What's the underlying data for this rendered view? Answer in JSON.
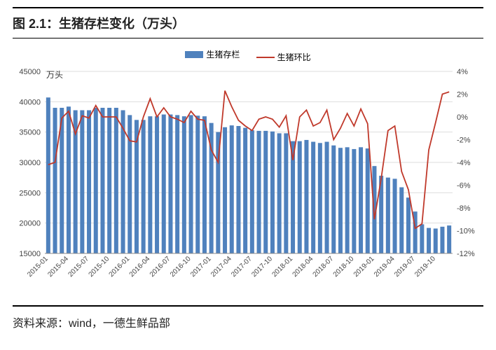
{
  "title": "图 2.1：生猪存栏变化（万头）",
  "source": "资料来源：wind，一德生鲜品部",
  "legend": {
    "bar_label": "生猪存栏",
    "line_label": "生猪环比"
  },
  "y_left_unit": "万头",
  "chart": {
    "type": "bar+line",
    "background_color": "#ffffff",
    "grid_color": "#dddddd",
    "bar_color": "#4f81bd",
    "line_color": "#c0392b",
    "bar_width": 0.62,
    "y_left": {
      "min": 15000,
      "max": 45000,
      "step": 5000
    },
    "y_right": {
      "min": -12,
      "max": 4,
      "step": 2,
      "suffix": "%"
    },
    "x_label_indices": [
      0,
      3,
      6,
      9,
      12,
      15,
      18,
      21,
      24,
      27,
      30,
      33,
      36,
      39,
      42,
      45,
      48,
      51,
      54,
      57
    ],
    "categories": [
      "2015-01",
      "2015-02",
      "2015-03",
      "2015-04",
      "2015-05",
      "2015-06",
      "2015-07",
      "2015-08",
      "2015-09",
      "2015-10",
      "2015-11",
      "2015-12",
      "2016-01",
      "2016-02",
      "2016-03",
      "2016-04",
      "2016-05",
      "2016-06",
      "2016-07",
      "2016-08",
      "2016-09",
      "2016-10",
      "2016-11",
      "2016-12",
      "2017-01",
      "2017-02",
      "2017-03",
      "2017-04",
      "2017-05",
      "2017-06",
      "2017-07",
      "2017-08",
      "2017-09",
      "2017-10",
      "2017-11",
      "2017-12",
      "2018-01",
      "2018-02",
      "2018-03",
      "2018-04",
      "2018-05",
      "2018-06",
      "2018-07",
      "2018-08",
      "2018-09",
      "2018-10",
      "2018-11",
      "2018-12",
      "2019-01",
      "2019-02",
      "2019-03",
      "2019-04",
      "2019-05",
      "2019-06",
      "2019-07",
      "2019-08",
      "2019-09",
      "2019-10",
      "2019-11",
      "2019-12"
    ],
    "bar_values": [
      40700,
      39000,
      39000,
      39200,
      38600,
      38600,
      38600,
      39000,
      39000,
      39000,
      39000,
      38600,
      37800,
      37000,
      37000,
      37600,
      37600,
      37900,
      37900,
      37800,
      37600,
      37800,
      37700,
      37600,
      36500,
      35000,
      35800,
      36100,
      36000,
      35700,
      35300,
      35200,
      35200,
      35100,
      34800,
      34800,
      33500,
      33500,
      33700,
      33400,
      33200,
      33400,
      32800,
      32400,
      32500,
      32200,
      32500,
      32300,
      29400,
      27800,
      27500,
      27300,
      25900,
      24200,
      21900,
      19800,
      19200,
      19100,
      19400,
      19600
    ],
    "line_values": [
      -4.2,
      -4.0,
      -0.1,
      0.5,
      -1.5,
      0.1,
      -0.1,
      1.0,
      0.0,
      0.0,
      0.0,
      -1.0,
      -2.1,
      -2.2,
      0.0,
      1.6,
      0.0,
      0.8,
      0.0,
      -0.2,
      -0.5,
      0.5,
      -0.2,
      -0.3,
      -2.9,
      -4.0,
      2.3,
      0.9,
      -0.3,
      -0.8,
      -1.2,
      -0.2,
      0.0,
      -0.2,
      -0.9,
      0.1,
      -3.8,
      0.0,
      0.6,
      -0.8,
      -0.5,
      0.6,
      -2.0,
      -1.0,
      0.3,
      -0.8,
      0.7,
      -0.6,
      -9.0,
      -5.4,
      -1.2,
      -0.8,
      -4.8,
      -6.4,
      -9.8,
      -9.4,
      -2.9,
      -0.5,
      2.0,
      2.2
    ]
  }
}
